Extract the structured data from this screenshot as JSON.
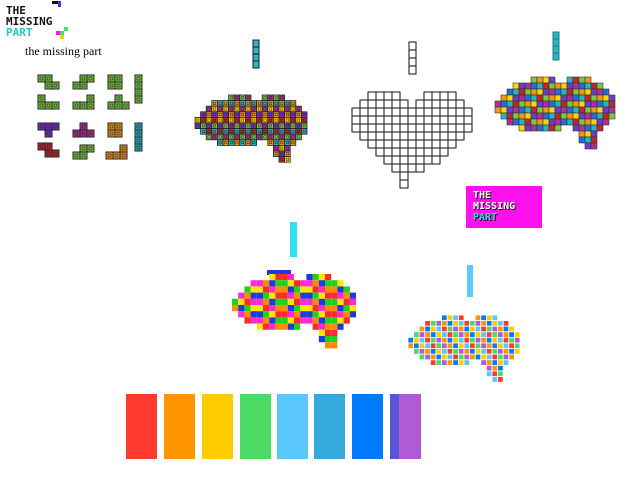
{
  "logo": {
    "line1": "THE",
    "line2": "MISSING",
    "line3": "PART",
    "colors": {
      "text": "#111111",
      "accent": "#22c7c7",
      "magenta": "#ff11ee"
    }
  },
  "caption": "the missing part",
  "badge": {
    "line1": "THE",
    "line2": "MISSING",
    "line3": "PART",
    "background": "#ff11ee"
  },
  "palette": [
    {
      "name": "red",
      "color": "#ff3b30"
    },
    {
      "name": "orange",
      "color": "#ff9500"
    },
    {
      "name": "yellow",
      "color": "#ffcc00"
    },
    {
      "name": "green",
      "color": "#4cd964"
    },
    {
      "name": "light-blue",
      "color": "#5ac8fa"
    },
    {
      "name": "teal-blue",
      "color": "#34aadc"
    },
    {
      "name": "blue",
      "color": "#007aff"
    },
    {
      "name": "purple",
      "color": "#5856d6"
    },
    {
      "name": "violet",
      "color": "#b05ad8"
    }
  ],
  "artworks": [
    {
      "name": "tetromino-set",
      "style": "outlined-retro"
    },
    {
      "name": "retro-brain",
      "style": "outlined-retro"
    },
    {
      "name": "grid-heart",
      "style": "wireframe"
    },
    {
      "name": "glossy-brain",
      "style": "bevelled"
    },
    {
      "name": "flat-brain",
      "style": "flat"
    },
    {
      "name": "outline-brain",
      "style": "outlined-flat"
    }
  ]
}
